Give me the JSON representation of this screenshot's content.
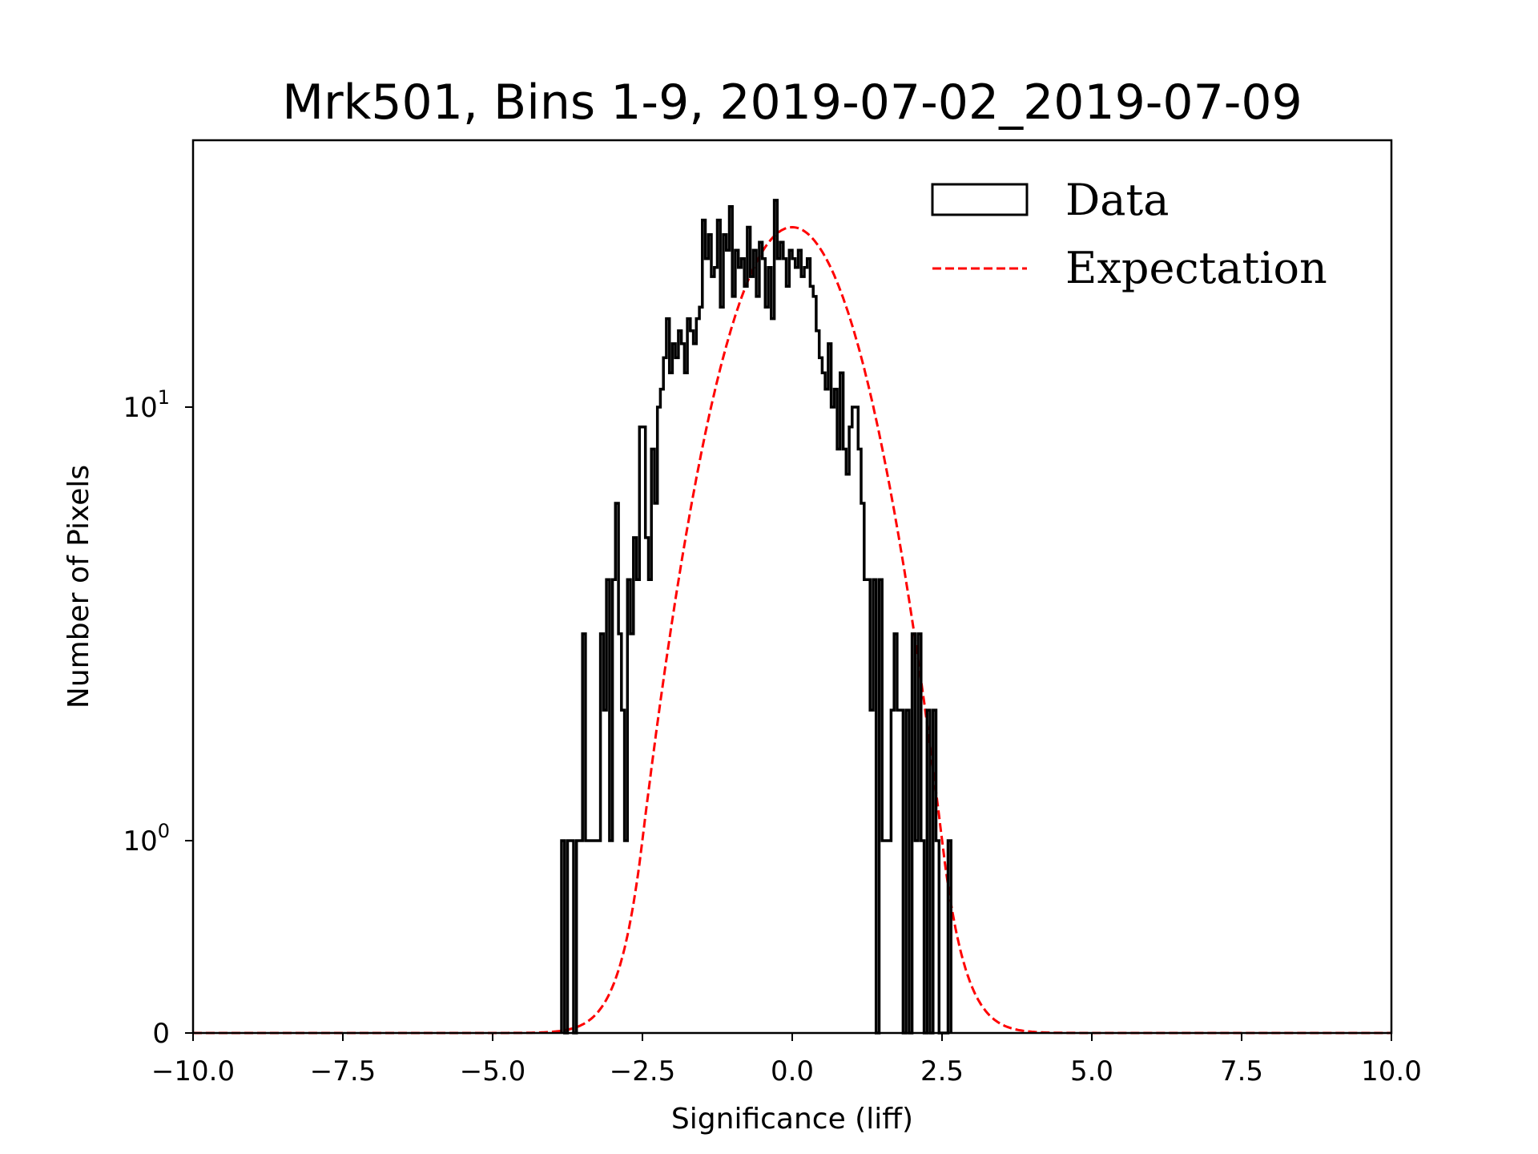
{
  "chart_data": {
    "type": "histogram",
    "title": "Mrk501, Bins 1-9, 2019-07-02_2019-07-09",
    "xlabel": "Significance (liff)",
    "ylabel": "Number of Pixels",
    "xlim": [
      -10,
      10
    ],
    "yscale": "symlog",
    "linthresh": 1,
    "ylim": [
      0,
      41
    ],
    "xticks": [
      -10,
      -7.5,
      -5,
      -2.5,
      0,
      2.5,
      5,
      7.5,
      10
    ],
    "xtick_labels": [
      "−10.0",
      "−7.5",
      "−5.0",
      "−2.5",
      "0.0",
      "2.5",
      "5.0",
      "7.5",
      "10.0"
    ],
    "yticks": [
      {
        "value": 0,
        "base": "0",
        "exp": ""
      },
      {
        "value": 1,
        "base": "10",
        "exp": "0"
      },
      {
        "value": 10,
        "base": "10",
        "exp": "1"
      }
    ],
    "legend": {
      "position": "top-right",
      "entries": [
        "Data",
        "Expectation"
      ]
    },
    "colors": {
      "data": "#000000",
      "expectation": "#ff0000"
    },
    "data": {
      "name": "Data",
      "bin_start": -3.85,
      "bin_width": 0.05,
      "counts": [
        1,
        0,
        1,
        1,
        0,
        1,
        1,
        3,
        1,
        1,
        1,
        1,
        1,
        3,
        2,
        4,
        1,
        4,
        6,
        3,
        2,
        1,
        4,
        3,
        5,
        4,
        9,
        9,
        5,
        4,
        8,
        6,
        10,
        11,
        13,
        16,
        12,
        14,
        13,
        15,
        14,
        12,
        16,
        15,
        14,
        16,
        17,
        27,
        22,
        25,
        20,
        21,
        27,
        17,
        25,
        23,
        29,
        18,
        23,
        21,
        22,
        19,
        26,
        20,
        23,
        18,
        24,
        22,
        17,
        21,
        16,
        30,
        22,
        24,
        22,
        19,
        23,
        22,
        21,
        23,
        20,
        21,
        22,
        19,
        18,
        15,
        13,
        12,
        11,
        14,
        10,
        11,
        8,
        12,
        8,
        7,
        9,
        10,
        10,
        8,
        6,
        4,
        4,
        2,
        4,
        0,
        4,
        1,
        1,
        1,
        2,
        3,
        2,
        2,
        0,
        2,
        0,
        3,
        1,
        3,
        1,
        0,
        2,
        0,
        2,
        1,
        0,
        0,
        0,
        1
      ]
    },
    "expectation": {
      "name": "Expectation",
      "model": "gaussian",
      "amplitude": 26,
      "mean": 0,
      "sigma": 0.98
    }
  }
}
